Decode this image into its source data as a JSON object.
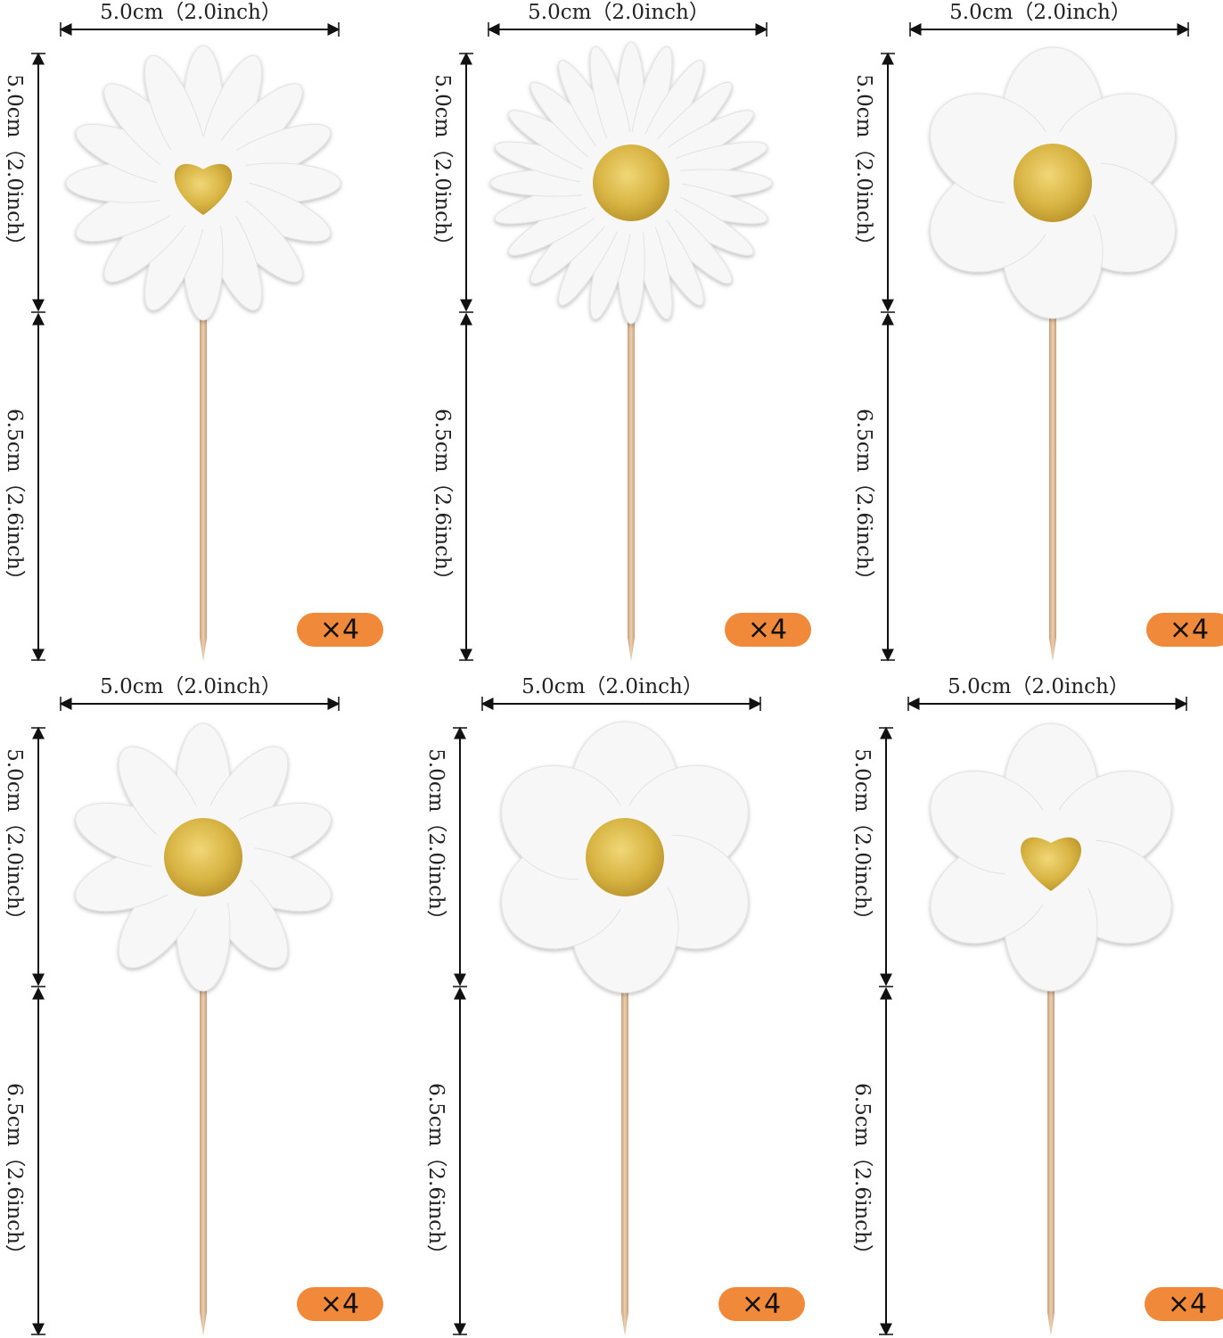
{
  "items": [
    {
      "width_label": "5.0cm（2.0inch）",
      "head_height_label": "5.0cm（2.0inch）",
      "stick_height_label": "6.5cm（2.6inch）",
      "quantity": "×4"
    },
    {
      "width_label": "5.0cm（2.0inch）",
      "head_height_label": "5.0cm（2.0inch）",
      "stick_height_label": "6.5cm（2.6inch）",
      "quantity": "×4"
    },
    {
      "width_label": "5.0cm（2.0inch）",
      "head_height_label": "5.0cm（2.0inch）",
      "stick_height_label": "6.5cm（2.6inch）",
      "quantity": "×4"
    },
    {
      "width_label": "5.0cm（2.0inch）",
      "head_height_label": "5.0cm（2.0inch）",
      "stick_height_label": "6.5cm（2.6inch）",
      "quantity": "×4"
    },
    {
      "width_label": "5.0cm（2.0inch）",
      "head_height_label": "5.0cm（2.0inch）",
      "stick_height_label": "6.5cm（2.6inch）",
      "quantity": "×4"
    },
    {
      "width_label": "5.0cm（2.0inch）",
      "head_height_label": "5.0cm（2.0inch）",
      "stick_height_label": "6.5cm（2.6inch）",
      "quantity": "×4"
    }
  ]
}
